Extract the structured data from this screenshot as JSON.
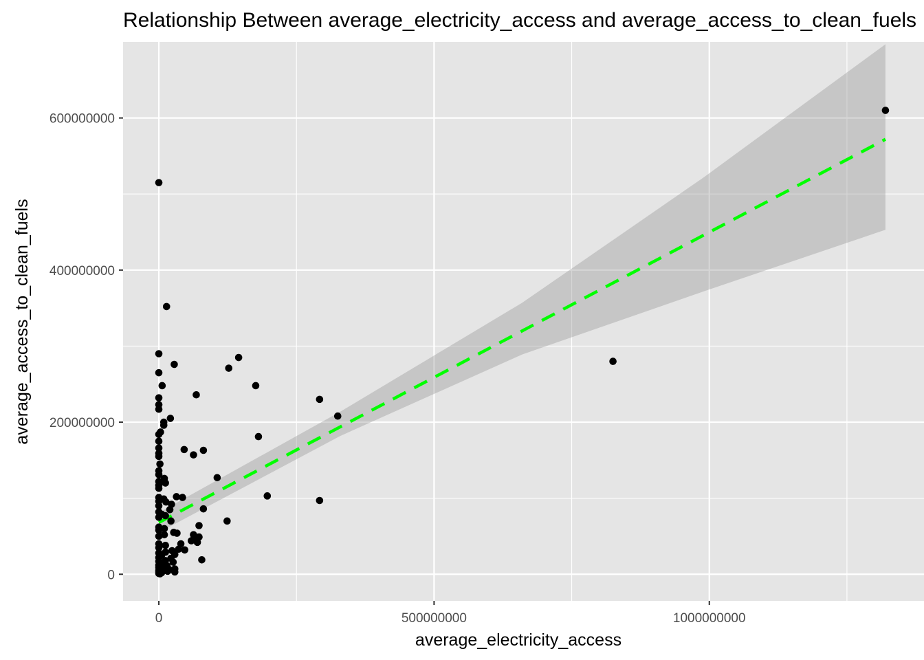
{
  "colors": {
    "panel_bg": "#e5e5e5",
    "grid_major": "#ffffff",
    "point": "#000000",
    "trend_line": "#00ff00",
    "ribbon": "#999999"
  },
  "chart_data": {
    "type": "scatter",
    "title": "Relationship Between average_electricity_access and average_access_to_clean_fuels",
    "xlabel": "average_electricity_access",
    "ylabel": "average_access_to_clean_fuels",
    "xlim": [
      -65000000,
      1390000000
    ],
    "ylim": [
      -35000000,
      700000000
    ],
    "x_ticks": [
      0,
      500000000,
      1000000000
    ],
    "x_tick_labels": [
      "0",
      "500000000",
      "1000000000"
    ],
    "x_minor_ticks": [
      250000000,
      750000000,
      1250000000
    ],
    "y_ticks": [
      0,
      200000000,
      400000000,
      600000000
    ],
    "y_tick_labels": [
      "0",
      "200000000",
      "400000000",
      "600000000"
    ],
    "y_minor_ticks": [
      100000000,
      300000000,
      500000000
    ],
    "grid": true,
    "legend": "none",
    "trend_line": {
      "style": "dashed",
      "points": [
        [
          0,
          68000000
        ],
        [
          1320000000,
          572000000
        ]
      ]
    },
    "confidence_band": {
      "x": [
        0,
        330000000,
        660000000,
        990000000,
        1320000000
      ],
      "lower": [
        55000000,
        182000000,
        289000000,
        372000000,
        453000000
      ],
      "upper": [
        81000000,
        214000000,
        357000000,
        522000000,
        697000000
      ]
    },
    "points": [
      [
        1320000000,
        610000000
      ],
      [
        825000000,
        280000000
      ],
      [
        325000000,
        208000000
      ],
      [
        292000000,
        230000000
      ],
      [
        292000000,
        97000000
      ],
      [
        0,
        515000000
      ],
      [
        14000000,
        352000000
      ],
      [
        0,
        290000000
      ],
      [
        0,
        265000000
      ],
      [
        28000000,
        276000000
      ],
      [
        145000000,
        285000000
      ],
      [
        127000000,
        271000000
      ],
      [
        176000000,
        248000000
      ],
      [
        6000000,
        248000000
      ],
      [
        68000000,
        236000000
      ],
      [
        0,
        232000000
      ],
      [
        0,
        223000000
      ],
      [
        0,
        217000000
      ],
      [
        21000000,
        205000000
      ],
      [
        9000000,
        200000000
      ],
      [
        9000000,
        196000000
      ],
      [
        181000000,
        181000000
      ],
      [
        3000000,
        187000000
      ],
      [
        0,
        184000000
      ],
      [
        0,
        175000000
      ],
      [
        46000000,
        164000000
      ],
      [
        81000000,
        163000000
      ],
      [
        63000000,
        157000000
      ],
      [
        0,
        166000000
      ],
      [
        0,
        159000000
      ],
      [
        0,
        155000000
      ],
      [
        2000000,
        145000000
      ],
      [
        0,
        136000000
      ],
      [
        0,
        131000000
      ],
      [
        106000000,
        127000000
      ],
      [
        10000000,
        126000000
      ],
      [
        0,
        122000000
      ],
      [
        12000000,
        120000000
      ],
      [
        0,
        117000000
      ],
      [
        0,
        113000000
      ],
      [
        197000000,
        103000000
      ],
      [
        32000000,
        102000000
      ],
      [
        43000000,
        101000000
      ],
      [
        0,
        101000000
      ],
      [
        9000000,
        99000000
      ],
      [
        0,
        96000000
      ],
      [
        13000000,
        95000000
      ],
      [
        23000000,
        92000000
      ],
      [
        0,
        90000000
      ],
      [
        81000000,
        86000000
      ],
      [
        20000000,
        85000000
      ],
      [
        0,
        82000000
      ],
      [
        5000000,
        79000000
      ],
      [
        12000000,
        77000000
      ],
      [
        0,
        75000000
      ],
      [
        124000000,
        70000000
      ],
      [
        22000000,
        70000000
      ],
      [
        73000000,
        64000000
      ],
      [
        0,
        62000000
      ],
      [
        10000000,
        60000000
      ],
      [
        0,
        58000000
      ],
      [
        27000000,
        55000000
      ],
      [
        33000000,
        54000000
      ],
      [
        10000000,
        52000000
      ],
      [
        63000000,
        52000000
      ],
      [
        0,
        50000000
      ],
      [
        73000000,
        49000000
      ],
      [
        63000000,
        46000000
      ],
      [
        59000000,
        44000000
      ],
      [
        70000000,
        42000000
      ],
      [
        40000000,
        40000000
      ],
      [
        0,
        40000000
      ],
      [
        12000000,
        38000000
      ],
      [
        0,
        35000000
      ],
      [
        36000000,
        33000000
      ],
      [
        47000000,
        32000000
      ],
      [
        24000000,
        31000000
      ],
      [
        12000000,
        29000000
      ],
      [
        0,
        28000000
      ],
      [
        29000000,
        26000000
      ],
      [
        5000000,
        25000000
      ],
      [
        0,
        22000000
      ],
      [
        22000000,
        21000000
      ],
      [
        78000000,
        19000000
      ],
      [
        12000000,
        18000000
      ],
      [
        0,
        17000000
      ],
      [
        26000000,
        16000000
      ],
      [
        6000000,
        14000000
      ],
      [
        0,
        12000000
      ],
      [
        15000000,
        11000000
      ],
      [
        0,
        9000000
      ],
      [
        3000000,
        8000000
      ],
      [
        29000000,
        7000000
      ],
      [
        19000000,
        6000000
      ],
      [
        0,
        5000000
      ],
      [
        10000000,
        5000000
      ],
      [
        16000000,
        4000000
      ],
      [
        0,
        3000000
      ],
      [
        29000000,
        3000000
      ],
      [
        5000000,
        2000000
      ],
      [
        0,
        1000000
      ],
      [
        2000000,
        500000
      ]
    ]
  }
}
